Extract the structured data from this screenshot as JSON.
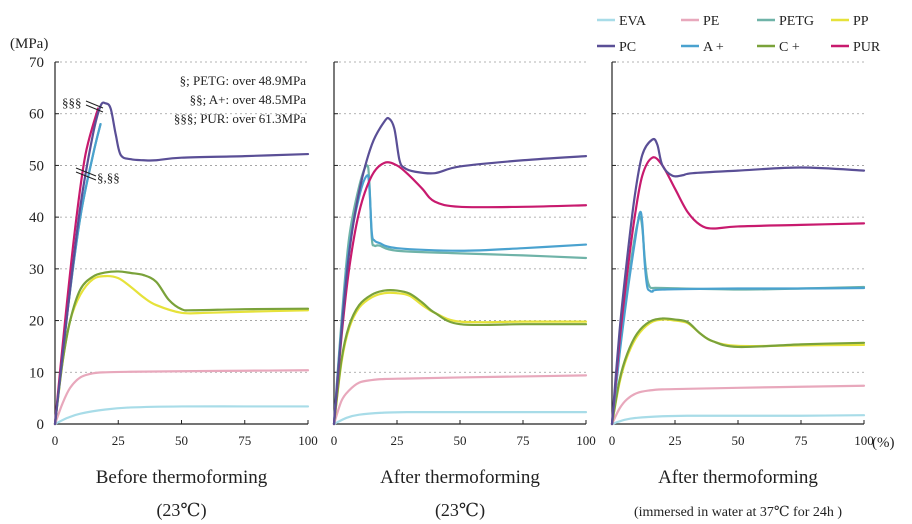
{
  "chart_data": {
    "type": "line",
    "y_unit": "(MPa)",
    "x_unit": "(%)",
    "xlim": [
      0,
      100
    ],
    "ylim": [
      0,
      70
    ],
    "x_ticks": [
      0,
      25,
      50,
      75,
      100
    ],
    "y_ticks": [
      0,
      10,
      20,
      30,
      40,
      50,
      60,
      70
    ],
    "grid": "horizontal-dotted",
    "legend_position": "top-right",
    "legend": [
      {
        "key": "EVA",
        "label": "EVA",
        "color": "#a8dce8"
      },
      {
        "key": "PE",
        "label": "PE",
        "color": "#e8a8bc"
      },
      {
        "key": "PETG",
        "label": "PETG",
        "color": "#6fb3a8"
      },
      {
        "key": "PP",
        "label": "PP",
        "color": "#e6e23a"
      },
      {
        "key": "PC",
        "label": "PC",
        "color": "#5a4f96"
      },
      {
        "key": "A",
        "label": "A +",
        "color": "#4aa2cf"
      },
      {
        "key": "C",
        "label": "C +",
        "color": "#7aa23a"
      },
      {
        "key": "PUR",
        "label": "PUR",
        "color": "#c81a6e"
      }
    ],
    "panels": [
      {
        "title": "Before thermoforming",
        "subtitle": "(23℃)",
        "annotations": {
          "notes": [
            "§; PETG:  over 48.9MPa",
            "§§; A+:  over 48.5MPa",
            "§§§; PUR:  over 61.3MPa"
          ],
          "mark_top": "§§§",
          "mark_mid": "§,§§"
        },
        "series": [
          {
            "key": "EVA",
            "x": [
              0,
              5,
              10,
              20,
              30,
              50,
              75,
              100
            ],
            "y": [
              0,
              1.2,
              2,
              2.8,
              3.2,
              3.4,
              3.4,
              3.4
            ]
          },
          {
            "key": "PE",
            "x": [
              0,
              3,
              6,
              10,
              15,
              20,
              30,
              50,
              75,
              100
            ],
            "y": [
              0,
              4,
              7,
              9,
              9.8,
              10,
              10.1,
              10.2,
              10.3,
              10.4
            ]
          },
          {
            "key": "PP",
            "x": [
              0,
              3,
              6,
              10,
              15,
              20,
              25,
              30,
              35,
              40,
              50,
              60,
              75,
              100
            ],
            "y": [
              0,
              12,
              20,
              25,
              28,
              28.6,
              28.2,
              26.5,
              24.5,
              23,
              21.5,
              21.5,
              21.7,
              22
            ]
          },
          {
            "key": "C",
            "x": [
              0,
              3,
              6,
              10,
              15,
              20,
              25,
              30,
              35,
              40,
              45,
              50,
              55,
              75,
              100
            ],
            "y": [
              0,
              12,
              20,
              26,
              28.5,
              29.3,
              29.5,
              29.2,
              28.8,
              27.5,
              24,
              22.2,
              22,
              22.2,
              22.3
            ]
          },
          {
            "key": "PETG",
            "x": [
              0,
              5,
              10,
              15,
              18
            ],
            "y": [
              0,
              22,
              40,
              52,
              58
            ]
          },
          {
            "key": "A",
            "x": [
              0,
              5,
              10,
              15,
              18
            ],
            "y": [
              0,
              22,
              40,
              52,
              58
            ]
          },
          {
            "key": "PUR",
            "x": [
              0,
              4,
              8,
              12,
              17
            ],
            "y": [
              0,
              20,
              38,
              52,
              61
            ]
          },
          {
            "key": "PC",
            "x": [
              0,
              5,
              10,
              15,
              18,
              20,
              22,
              24,
              26,
              30,
              35,
              40,
              50,
              75,
              100
            ],
            "y": [
              0,
              22,
              42,
              56,
              61.5,
              62,
              61,
              56,
              52,
              51.2,
              51,
              51,
              51.5,
              51.8,
              52.2
            ]
          }
        ]
      },
      {
        "title": "After thermoforming",
        "subtitle": "(23℃)",
        "series": [
          {
            "key": "EVA",
            "x": [
              0,
              5,
              10,
              20,
              30,
              50,
              75,
              100
            ],
            "y": [
              0,
              1.2,
              1.8,
              2.2,
              2.3,
              2.3,
              2.3,
              2.3
            ]
          },
          {
            "key": "PE",
            "x": [
              0,
              3,
              6,
              10,
              15,
              20,
              30,
              50,
              75,
              100
            ],
            "y": [
              0,
              4.5,
              6.5,
              8,
              8.5,
              8.7,
              8.8,
              9,
              9.2,
              9.4
            ]
          },
          {
            "key": "PP",
            "x": [
              0,
              3,
              6,
              10,
              15,
              20,
              25,
              30,
              35,
              40,
              50,
              75,
              100
            ],
            "y": [
              0,
              12,
              18.5,
              22.5,
              24.5,
              25.3,
              25.3,
              24.8,
              23,
              21.5,
              19.8,
              19.8,
              19.8
            ]
          },
          {
            "key": "C",
            "x": [
              0,
              3,
              6,
              10,
              15,
              20,
              25,
              30,
              35,
              40,
              50,
              75,
              100
            ],
            "y": [
              0,
              12.5,
              19,
              23,
              25,
              25.8,
              25.8,
              25.2,
              23.5,
              21.5,
              19.3,
              19.3,
              19.3
            ]
          },
          {
            "key": "PETG",
            "x": [
              0,
              3,
              6,
              10,
              13,
              14,
              15,
              16,
              18,
              25,
              50,
              75,
              100
            ],
            "y": [
              0,
              20,
              36,
              46,
              50,
              47,
              36,
              34.5,
              34.5,
              33.5,
              33,
              32.6,
              32.1
            ]
          },
          {
            "key": "A",
            "x": [
              0,
              3,
              6,
              10,
              13,
              14,
              15,
              16,
              18,
              25,
              50,
              75,
              100
            ],
            "y": [
              0,
              19,
              34,
              44,
              48,
              46,
              37,
              35.5,
              35,
              34,
              33.5,
              34,
              34.7
            ]
          },
          {
            "key": "PUR",
            "x": [
              0,
              3,
              6,
              10,
              15,
              20,
              25,
              30,
              35,
              40,
              50,
              75,
              100
            ],
            "y": [
              0,
              17,
              30,
              41,
              48,
              50.5,
              50,
              48,
              45.5,
              43,
              42,
              42,
              42.3
            ]
          },
          {
            "key": "PC",
            "x": [
              0,
              3,
              6,
              10,
              15,
              20,
              22,
              24,
              26,
              28,
              32,
              40,
              50,
              75,
              100
            ],
            "y": [
              0,
              18,
              33,
              45,
              54,
              58.5,
              59,
              57,
              51,
              49.5,
              48.8,
              48.5,
              49.8,
              51,
              51.8
            ]
          }
        ]
      },
      {
        "title": "After thermoforming",
        "subtitle": "(immersed in water at 37℃ for 24h )",
        "series": [
          {
            "key": "EVA",
            "x": [
              0,
              5,
              10,
              20,
              30,
              50,
              75,
              100
            ],
            "y": [
              0,
              0.8,
              1.2,
              1.5,
              1.6,
              1.6,
              1.6,
              1.7
            ]
          },
          {
            "key": "PE",
            "x": [
              0,
              3,
              6,
              10,
              15,
              20,
              30,
              50,
              75,
              100
            ],
            "y": [
              0,
              3,
              4.8,
              6,
              6.5,
              6.7,
              6.8,
              7,
              7.2,
              7.4
            ]
          },
          {
            "key": "PP",
            "x": [
              0,
              3,
              6,
              10,
              15,
              20,
              25,
              30,
              35,
              40,
              50,
              75,
              100
            ],
            "y": [
              0,
              8,
              13,
              17,
              19.5,
              20.2,
              20,
              19.5,
              17.5,
              16,
              15.1,
              15.2,
              15.3
            ]
          },
          {
            "key": "C",
            "x": [
              0,
              3,
              6,
              10,
              15,
              20,
              25,
              30,
              35,
              40,
              50,
              75,
              100
            ],
            "y": [
              0,
              8.5,
              13.5,
              17.5,
              19.8,
              20.4,
              20.2,
              19.7,
              17.5,
              16,
              14.9,
              15.4,
              15.7
            ]
          },
          {
            "key": "PETG",
            "x": [
              0,
              3,
              6,
              9,
              11,
              12,
              13,
              14,
              15,
              16,
              20,
              50,
              75,
              100
            ],
            "y": [
              0,
              14,
              26,
              36,
              40,
              38,
              32,
              28,
              26.5,
              26.3,
              26.3,
              26,
              26.2,
              26.5
            ]
          },
          {
            "key": "A",
            "x": [
              0,
              3,
              6,
              9,
              11,
              12,
              13,
              14,
              15,
              16,
              20,
              50,
              75,
              100
            ],
            "y": [
              0,
              13.5,
              25,
              35,
              40.8,
              39,
              31,
              26.5,
              25.8,
              25.6,
              26,
              26.2,
              26.2,
              26.3
            ]
          },
          {
            "key": "PUR",
            "x": [
              0,
              3,
              6,
              9,
              12,
              16,
              20,
              25,
              30,
              35,
              40,
              50,
              75,
              100
            ],
            "y": [
              0,
              16,
              29,
              40,
              48,
              51.5,
              50,
              45.5,
              41,
              38.5,
              37.8,
              38.2,
              38.5,
              38.8
            ]
          },
          {
            "key": "PC",
            "x": [
              0,
              3,
              6,
              9,
              12,
              16,
              18,
              20,
              24,
              28,
              32,
              50,
              75,
              100
            ],
            "y": [
              0,
              18,
              32,
              44,
              52,
              55,
              54,
              50,
              48,
              48.1,
              48.5,
              49,
              49.6,
              49
            ]
          }
        ]
      }
    ]
  }
}
